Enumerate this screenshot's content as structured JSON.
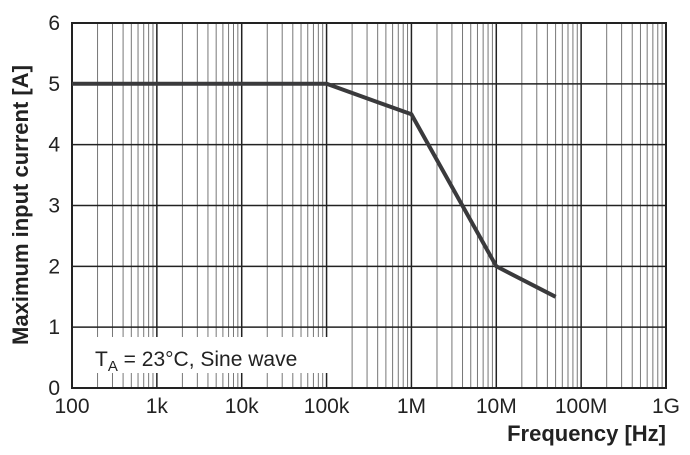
{
  "chart_data": {
    "type": "line",
    "xscale": "log",
    "xlim": [
      100,
      1000000000
    ],
    "ylim": [
      0,
      6
    ],
    "x_ticks": [
      {
        "value": 100,
        "label": "100"
      },
      {
        "value": 1000,
        "label": "1k"
      },
      {
        "value": 10000,
        "label": "10k"
      },
      {
        "value": 100000,
        "label": "100k"
      },
      {
        "value": 1000000,
        "label": "1M"
      },
      {
        "value": 10000000,
        "label": "10M"
      },
      {
        "value": 100000000,
        "label": "100M"
      },
      {
        "value": 1000000000,
        "label": "1G"
      }
    ],
    "y_ticks": [
      0,
      1,
      2,
      3,
      4,
      5,
      6
    ],
    "xlabel": "Frequency [Hz]",
    "ylabel": "Maximum input current [A]",
    "grid": true,
    "annotation": {
      "prefix": "T",
      "subscript": "A",
      "suffix": " = 23°C, Sine wave"
    },
    "series": [
      {
        "x": [
          100,
          100000,
          1000000,
          10000000,
          50000000
        ],
        "y": [
          5,
          5,
          4.5,
          2,
          1.5
        ]
      }
    ],
    "line_color": "#3a3a3c",
    "grid_color": "#222222",
    "fine_grid_color": "#777777"
  }
}
